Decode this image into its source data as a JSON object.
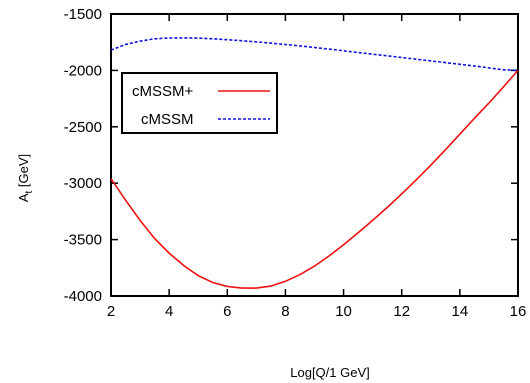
{
  "chart_data": {
    "type": "line",
    "xlabel": "Log[Q/1 GeV]",
    "ylabel_main": "A",
    "ylabel_sub": "t",
    "ylabel_unit": " [GeV]",
    "xlim": [
      2,
      16
    ],
    "ylim": [
      -4000,
      -1500
    ],
    "xticks": [
      2,
      4,
      6,
      8,
      10,
      12,
      14,
      16
    ],
    "yticks": [
      -4000,
      -3500,
      -3000,
      -2500,
      -2000,
      -1500
    ],
    "grid": false,
    "legend_position": "upper-left",
    "series": [
      {
        "name": "cMSSM+",
        "color": "#ee1111",
        "style": "solid",
        "x": [
          2,
          2.5,
          3,
          3.5,
          4,
          4.5,
          5,
          5.5,
          6,
          6.5,
          7,
          7.5,
          8,
          8.5,
          9,
          9.5,
          10,
          10.5,
          11,
          11.5,
          12,
          12.5,
          13,
          13.5,
          14,
          14.5,
          15,
          15.5,
          16
        ],
        "y": [
          -2960,
          -3150,
          -3330,
          -3490,
          -3620,
          -3730,
          -3820,
          -3880,
          -3915,
          -3930,
          -3930,
          -3912,
          -3870,
          -3810,
          -3735,
          -3645,
          -3545,
          -3440,
          -3330,
          -3215,
          -3095,
          -2970,
          -2840,
          -2705,
          -2565,
          -2425,
          -2290,
          -2145,
          -2000
        ]
      },
      {
        "name": "cMSSM",
        "color": "#1111dd",
        "style": "dashed",
        "x": [
          2,
          2.5,
          3,
          3.5,
          4,
          4.5,
          5,
          5.5,
          6,
          6.5,
          7,
          7.5,
          8,
          8.5,
          9,
          9.5,
          10,
          10.5,
          11,
          11.5,
          12,
          12.5,
          13,
          13.5,
          14,
          14.5,
          15,
          15.5,
          16
        ],
        "y": [
          -1820,
          -1770,
          -1740,
          -1720,
          -1713,
          -1712,
          -1714,
          -1720,
          -1728,
          -1737,
          -1747,
          -1758,
          -1770,
          -1783,
          -1797,
          -1811,
          -1826,
          -1841,
          -1856,
          -1871,
          -1886,
          -1901,
          -1916,
          -1931,
          -1946,
          -1961,
          -1978,
          -1995,
          -2000
        ]
      }
    ]
  }
}
